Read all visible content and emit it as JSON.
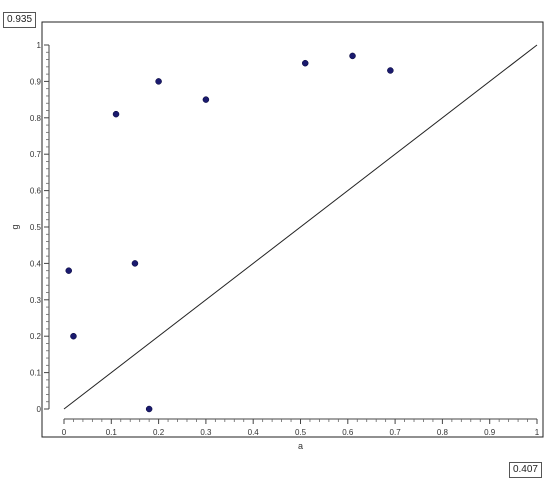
{
  "readouts": {
    "top_left": "0.935",
    "bottom_right": "0.407"
  },
  "chart_data": {
    "type": "scatter",
    "title": "",
    "xlabel": "a",
    "ylabel": "g",
    "xlim": [
      0,
      1
    ],
    "ylim": [
      0,
      1
    ],
    "x_ticks": [
      "0",
      "0.1",
      "0.2",
      "0.3",
      "0.4",
      "0.5",
      "0.6",
      "0.7",
      "0.8",
      "0.9",
      "1"
    ],
    "y_ticks": [
      "0",
      "0.1",
      "0.2",
      "0.3",
      "0.4",
      "0.5",
      "0.6",
      "0.7",
      "0.8",
      "0.9",
      "1"
    ],
    "grid": false,
    "reference_line": {
      "from": [
        0,
        0
      ],
      "to": [
        1,
        1
      ]
    },
    "series": [
      {
        "color": "#1a1a6e",
        "points": [
          {
            "x": 0.01,
            "y": 0.38
          },
          {
            "x": 0.02,
            "y": 0.2
          },
          {
            "x": 0.11,
            "y": 0.81
          },
          {
            "x": 0.15,
            "y": 0.4
          },
          {
            "x": 0.18,
            "y": 0.0
          },
          {
            "x": 0.2,
            "y": 0.9
          },
          {
            "x": 0.3,
            "y": 0.85
          },
          {
            "x": 0.51,
            "y": 0.95
          },
          {
            "x": 0.61,
            "y": 0.97
          },
          {
            "x": 0.69,
            "y": 0.93
          }
        ]
      }
    ]
  }
}
